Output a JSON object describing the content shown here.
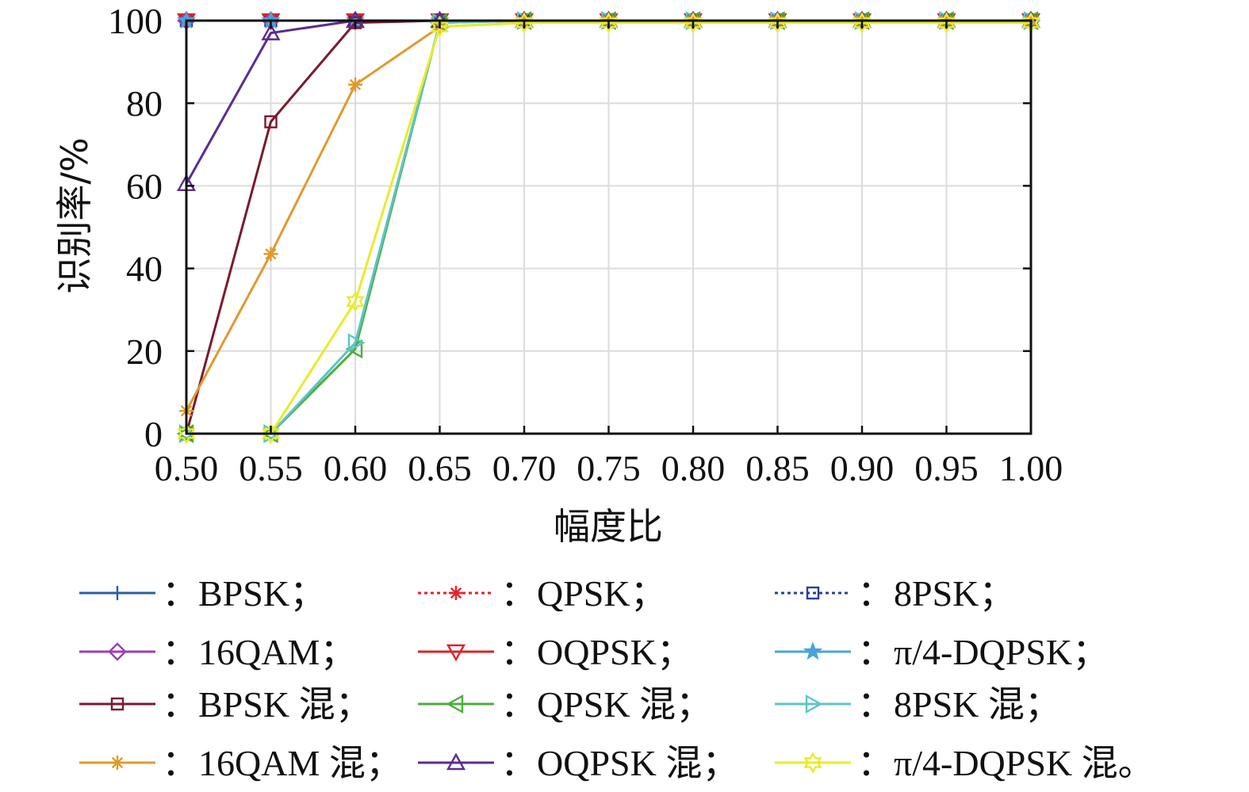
{
  "chart_data": {
    "type": "line",
    "title": "",
    "xlabel": "幅度比",
    "ylabel": "识别率/%",
    "xlim": [
      0.5,
      1.0
    ],
    "ylim": [
      0,
      100
    ],
    "grid": true,
    "legend_placement": "bottom",
    "x": [
      0.5,
      0.55,
      0.6,
      0.65,
      0.7,
      0.75,
      0.8,
      0.85,
      0.9,
      0.95,
      1.0
    ],
    "x_tick_labels": [
      "0.50",
      "0.55",
      "0.60",
      "0.65",
      "0.70",
      "0.75",
      "0.80",
      "0.85",
      "0.90",
      "0.95",
      "1.00"
    ],
    "y_tick_labels": [
      "0",
      "20",
      "40",
      "60",
      "80",
      "100"
    ],
    "y_ticks": [
      0,
      20,
      40,
      60,
      80,
      100
    ],
    "legend_separator": "：",
    "series": [
      {
        "name": "BPSK；",
        "color": "#2e5fa3",
        "marker": "plus",
        "dash": "solid",
        "values": [
          100,
          100,
          100,
          100,
          100,
          100,
          100,
          100,
          100,
          100,
          100
        ]
      },
      {
        "name": "QPSK；",
        "color": "#e8202a",
        "marker": "asterisk",
        "dash": "dotted",
        "values": [
          100,
          100,
          100,
          100,
          100,
          100,
          100,
          100,
          100,
          100,
          100
        ]
      },
      {
        "name": "8PSK；",
        "color": "#2a3f9e",
        "marker": "square",
        "dash": "dotted",
        "values": [
          100,
          100,
          100,
          100,
          100,
          100,
          100,
          100,
          100,
          100,
          100
        ]
      },
      {
        "name": "16QAM；",
        "color": "#9b3fb5",
        "marker": "diamond",
        "dash": "solid",
        "values": [
          100,
          100,
          100,
          100,
          100,
          100,
          100,
          100,
          100,
          100,
          100
        ]
      },
      {
        "name": "OQPSK；",
        "color": "#d8262b",
        "marker": "triangle-down",
        "dash": "solid",
        "values": [
          100,
          100,
          100,
          100,
          100,
          100,
          100,
          100,
          100,
          100,
          100
        ]
      },
      {
        "name": "π/4-DQPSK；",
        "color": "#4aa3d8",
        "marker": "star",
        "dash": "solid",
        "values": [
          100,
          100,
          100,
          100,
          100,
          100,
          100,
          100,
          100,
          100,
          100
        ]
      },
      {
        "name": "BPSK 混；",
        "color": "#7a1a2e",
        "marker": "square",
        "dash": "solid",
        "values": [
          0,
          75.5,
          99.5,
          100,
          100,
          100,
          100,
          100,
          100,
          100,
          100
        ]
      },
      {
        "name": "QPSK 混；",
        "color": "#4cae3c",
        "marker": "triangle-left",
        "dash": "solid",
        "values": [
          0,
          0,
          20.5,
          99.5,
          100,
          100,
          100,
          100,
          100,
          100,
          100
        ]
      },
      {
        "name": "8PSK 混；",
        "color": "#5cc4c9",
        "marker": "triangle-right",
        "dash": "solid",
        "values": [
          0,
          0,
          22,
          99.5,
          100,
          100,
          100,
          100,
          100,
          100,
          100
        ]
      },
      {
        "name": "16QAM 混；",
        "color": "#e09a2c",
        "marker": "asterisk",
        "dash": "solid",
        "values": [
          5.5,
          43.5,
          84.5,
          98.5,
          99.5,
          100,
          100,
          100,
          100,
          100,
          100
        ]
      },
      {
        "name": "OQPSK 混；",
        "color": "#5b2c91",
        "marker": "triangle-up",
        "dash": "solid",
        "values": [
          60.5,
          97,
          100,
          100,
          100,
          100,
          100,
          100,
          100,
          100,
          100
        ]
      },
      {
        "name": "π/4-DQPSK 混。",
        "color": "#e8ec2a",
        "marker": "hexagram",
        "dash": "solid",
        "values": [
          0,
          0,
          32,
          98.5,
          99.5,
          99.5,
          99.5,
          99.5,
          99.5,
          99.5,
          99.5
        ]
      }
    ]
  }
}
